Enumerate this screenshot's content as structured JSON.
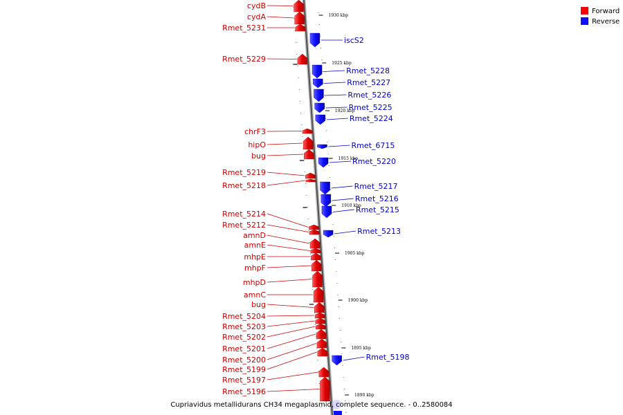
{
  "legend": {
    "forward_label": "Forward",
    "reverse_label": "Reverse",
    "forward_color": "#ff0000",
    "reverse_color": "#1010ff"
  },
  "caption": "Cupriavidus metallidurans CH34 megaplasmid, complete sequence. - 0..2580084",
  "axis": {
    "ticks": [
      {
        "label": "1930 kbp",
        "value": 1930
      },
      {
        "label": "1925 kbp",
        "value": 1925
      },
      {
        "label": "1920 kbp",
        "value": 1920
      },
      {
        "label": "1915 kbp",
        "value": 1915
      },
      {
        "label": "1910 kbp",
        "value": 1910
      },
      {
        "label": "1905 kbp",
        "value": 1905
      },
      {
        "label": "1900 kbp",
        "value": 1900
      },
      {
        "label": "1895 kbp",
        "value": 1895
      },
      {
        "label": "1890 kbp",
        "value": 1890
      }
    ]
  },
  "genes": [
    {
      "name": "cydB",
      "strand": "forward"
    },
    {
      "name": "cydA",
      "strand": "forward"
    },
    {
      "name": "Rmet_5231",
      "strand": "forward"
    },
    {
      "name": "iscS2",
      "strand": "reverse"
    },
    {
      "name": "Rmet_5229",
      "strand": "forward"
    },
    {
      "name": "Rmet_5228",
      "strand": "reverse"
    },
    {
      "name": "Rmet_5227",
      "strand": "reverse"
    },
    {
      "name": "Rmet_5226",
      "strand": "reverse"
    },
    {
      "name": "Rmet_5225",
      "strand": "reverse"
    },
    {
      "name": "Rmet_5224",
      "strand": "reverse"
    },
    {
      "name": "chrF3",
      "strand": "forward"
    },
    {
      "name": "hipO",
      "strand": "forward"
    },
    {
      "name": "bug",
      "strand": "forward"
    },
    {
      "name": "Rmet_6715",
      "strand": "reverse"
    },
    {
      "name": "Rmet_5220",
      "strand": "reverse"
    },
    {
      "name": "Rmet_5219",
      "strand": "forward"
    },
    {
      "name": "Rmet_5218",
      "strand": "forward"
    },
    {
      "name": "Rmet_5217",
      "strand": "reverse"
    },
    {
      "name": "Rmet_5216",
      "strand": "reverse"
    },
    {
      "name": "Rmet_5215",
      "strand": "reverse"
    },
    {
      "name": "Rmet_5214",
      "strand": "forward"
    },
    {
      "name": "Rmet_5212",
      "strand": "forward"
    },
    {
      "name": "Rmet_5213",
      "strand": "reverse"
    },
    {
      "name": "amnD",
      "strand": "forward"
    },
    {
      "name": "amnE",
      "strand": "forward"
    },
    {
      "name": "mhpE",
      "strand": "forward"
    },
    {
      "name": "mhpF",
      "strand": "forward"
    },
    {
      "name": "mhpD",
      "strand": "forward"
    },
    {
      "name": "amnC",
      "strand": "forward"
    },
    {
      "name": "bug",
      "strand": "forward"
    },
    {
      "name": "Rmet_5204",
      "strand": "forward"
    },
    {
      "name": "Rmet_5203",
      "strand": "forward"
    },
    {
      "name": "Rmet_5202",
      "strand": "forward"
    },
    {
      "name": "Rmet_5201",
      "strand": "forward"
    },
    {
      "name": "Rmet_5200",
      "strand": "forward"
    },
    {
      "name": "Rmet_5199",
      "strand": "forward"
    },
    {
      "name": "Rmet_5198",
      "strand": "reverse"
    },
    {
      "name": "Rmet_5197",
      "strand": "forward"
    },
    {
      "name": "Rmet_5196",
      "strand": "forward"
    }
  ]
}
